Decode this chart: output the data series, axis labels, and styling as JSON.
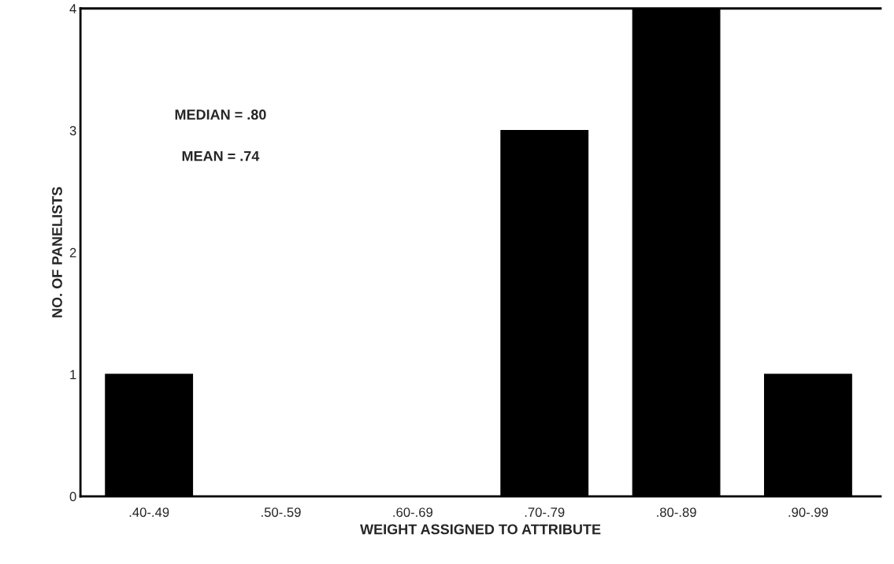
{
  "chart_data": {
    "type": "bar",
    "xlabel": "WEIGHT ASSIGNED TO ATTRIBUTE",
    "ylabel": "NO. OF PANELISTS",
    "categories": [
      ".40-.49",
      ".50-.59",
      ".60-.69",
      ".70-.79",
      ".80-.89",
      ".90-.99"
    ],
    "values": [
      1,
      0,
      0,
      3,
      4,
      1
    ],
    "color": "#000000",
    "ylim": [
      0,
      4
    ],
    "yticks": [
      0,
      1,
      2,
      3,
      4
    ],
    "grid": false,
    "legend": false,
    "annotations": [
      "MEDIAN = .80",
      "MEAN = .74"
    ]
  }
}
